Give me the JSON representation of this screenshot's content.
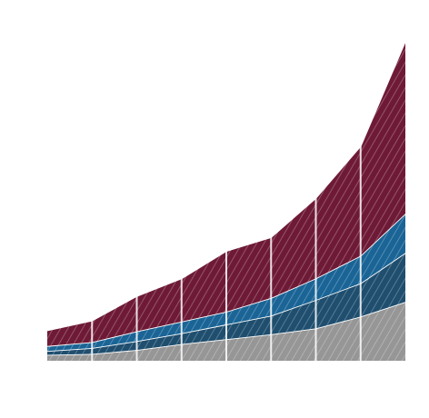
{
  "chart_data": {
    "type": "area",
    "stacked": true,
    "title": "",
    "xlabel": "",
    "ylabel": "",
    "legend": "none",
    "grid": false,
    "x": [
      1,
      2,
      3,
      4,
      5,
      6,
      7,
      8,
      9
    ],
    "xlim": [
      1,
      9
    ],
    "ylim": [
      0,
      340
    ],
    "series": [
      {
        "color": "#969696",
        "values": [
          6,
          7,
          11,
          17,
          22,
          27,
          33,
          45,
          60
        ]
      },
      {
        "color": "#1f4e6e",
        "values": [
          4,
          6,
          9,
          11,
          15,
          19,
          29,
          34,
          50
        ]
      },
      {
        "color": "#1a6496",
        "values": [
          5,
          6,
          10,
          12,
          13,
          18,
          22,
          28,
          40
        ]
      },
      {
        "color": "#6e1a36",
        "values": [
          16,
          22,
          36,
          44,
          62,
          62,
          82,
          112,
          176
        ]
      }
    ]
  }
}
